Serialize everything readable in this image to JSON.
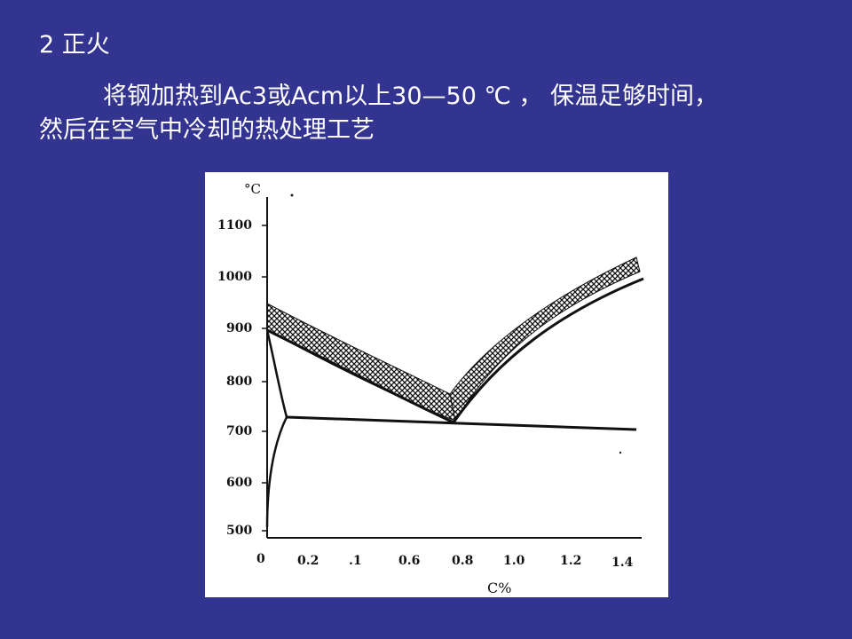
{
  "slide": {
    "title": "2 正火",
    "paragraph_line1": "将钢加热到Ac3或Acm以上30—50 ℃ ， 保温足够时间，",
    "paragraph_line2": "然后在空气中冷却的热处理工艺"
  },
  "diagram": {
    "y_unit": "°C",
    "x_unit": "C%",
    "y_ticks": [
      "1100",
      "1000",
      "900",
      "800",
      "700",
      "600",
      "500"
    ],
    "x_ticks": [
      "0",
      "0.2",
      ".1",
      "0.6",
      "0.8",
      "1.0",
      "1.2",
      "1.4"
    ]
  }
}
